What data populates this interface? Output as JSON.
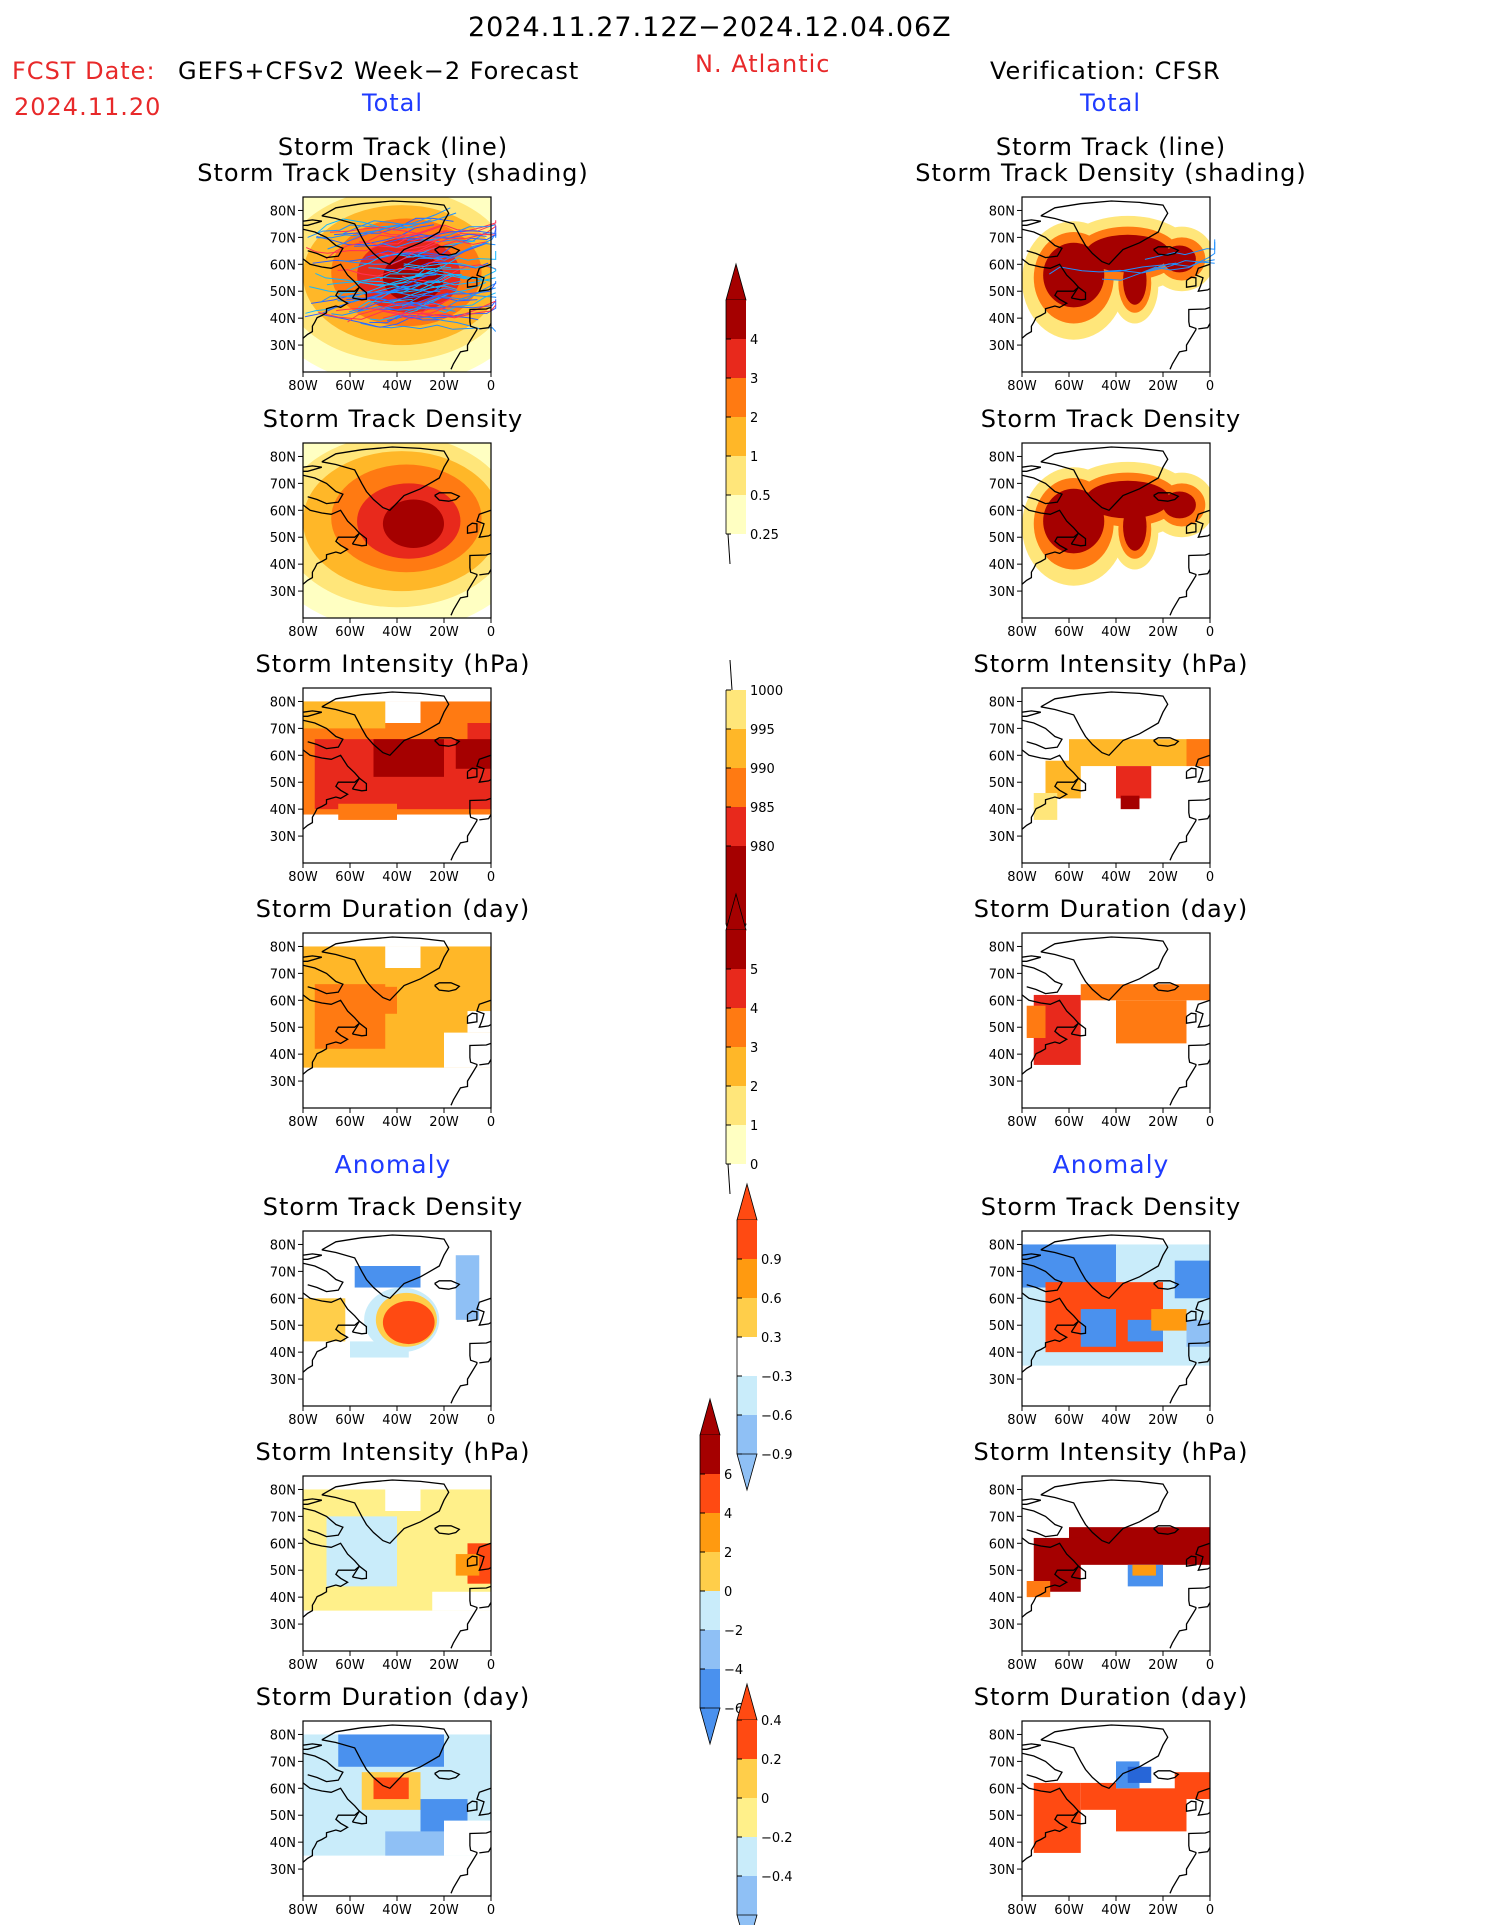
{
  "header": {
    "period": "2024.11.27.12Z−2024.12.04.06Z",
    "fcst_label": "FCST Date:",
    "model": "GEFS+CFSv2 Week−2 Forecast",
    "fcst_date": "2024.11.20",
    "region": "N. Atlantic",
    "verification": "Verification: CFSR",
    "total_left": "Total",
    "total_right": "Total",
    "anomaly_left": "Anomaly",
    "anomaly_right": "Anomaly"
  },
  "map_axes": {
    "lat_labels": [
      "80N",
      "70N",
      "60N",
      "50N",
      "40N",
      "30N"
    ],
    "lon_labels": [
      "80W",
      "60W",
      "40W",
      "20W",
      "0"
    ]
  },
  "colors": {
    "total": [
      "#ffffc2",
      "#ffe67a",
      "#ffb728",
      "#ff7a12",
      "#e8291c",
      "#a50000"
    ],
    "anomaly_neg": [
      "#2766d8",
      "#4a91ee",
      "#8fc0f5",
      "#c9ecfa"
    ],
    "anomaly_pos": [
      "#fff08a",
      "#ffce4a",
      "#ff9a10",
      "#ff4a12"
    ]
  },
  "panels": [
    {
      "id": "fc-track-line",
      "title1": "Storm Track (line)",
      "title2": "Storm Track Density (shading)"
    },
    {
      "id": "fc-track-density",
      "title1": "Storm Track Density"
    },
    {
      "id": "fc-intensity",
      "title1": "Storm Intensity (hPa)"
    },
    {
      "id": "fc-duration",
      "title1": "Storm Duration (day)"
    },
    {
      "id": "fc-anom-density",
      "title1": "Storm Track Density"
    },
    {
      "id": "fc-anom-intensity",
      "title1": "Storm Intensity (hPa)"
    },
    {
      "id": "fc-anom-duration",
      "title1": "Storm Duration (day)"
    },
    {
      "id": "vf-track-line",
      "title1": "Storm Track (line)",
      "title2": "Storm Track Density (shading)"
    },
    {
      "id": "vf-track-density",
      "title1": "Storm Track Density"
    },
    {
      "id": "vf-intensity",
      "title1": "Storm Intensity (hPa)"
    },
    {
      "id": "vf-duration",
      "title1": "Storm Duration (day)"
    },
    {
      "id": "vf-anom-density",
      "title1": "Storm Track Density"
    },
    {
      "id": "vf-anom-intensity",
      "title1": "Storm Intensity (hPa)"
    },
    {
      "id": "vf-anom-duration",
      "title1": "Storm Duration (day)"
    }
  ],
  "colorbars": [
    {
      "id": "cb-density",
      "labels": [
        "4",
        "3",
        "2",
        "1",
        "0.5",
        "0.25"
      ]
    },
    {
      "id": "cb-intensity",
      "labels": [
        "1000",
        "995",
        "990",
        "985",
        "980"
      ]
    },
    {
      "id": "cb-duration",
      "labels": [
        "5",
        "4",
        "3",
        "2",
        "1",
        "0"
      ]
    },
    {
      "id": "cb-anom-density",
      "labels": [
        "0.9",
        "0.6",
        "0.3",
        "−0.3",
        "−0.6",
        "−0.9"
      ]
    },
    {
      "id": "cb-anom-intensity",
      "labels": [
        "6",
        "4",
        "2",
        "0",
        "−2",
        "−4",
        "−6"
      ]
    },
    {
      "id": "cb-anom-duration",
      "labels": [
        "0.4",
        "0.2",
        "0",
        "−0.2",
        "−0.4"
      ]
    }
  ]
}
